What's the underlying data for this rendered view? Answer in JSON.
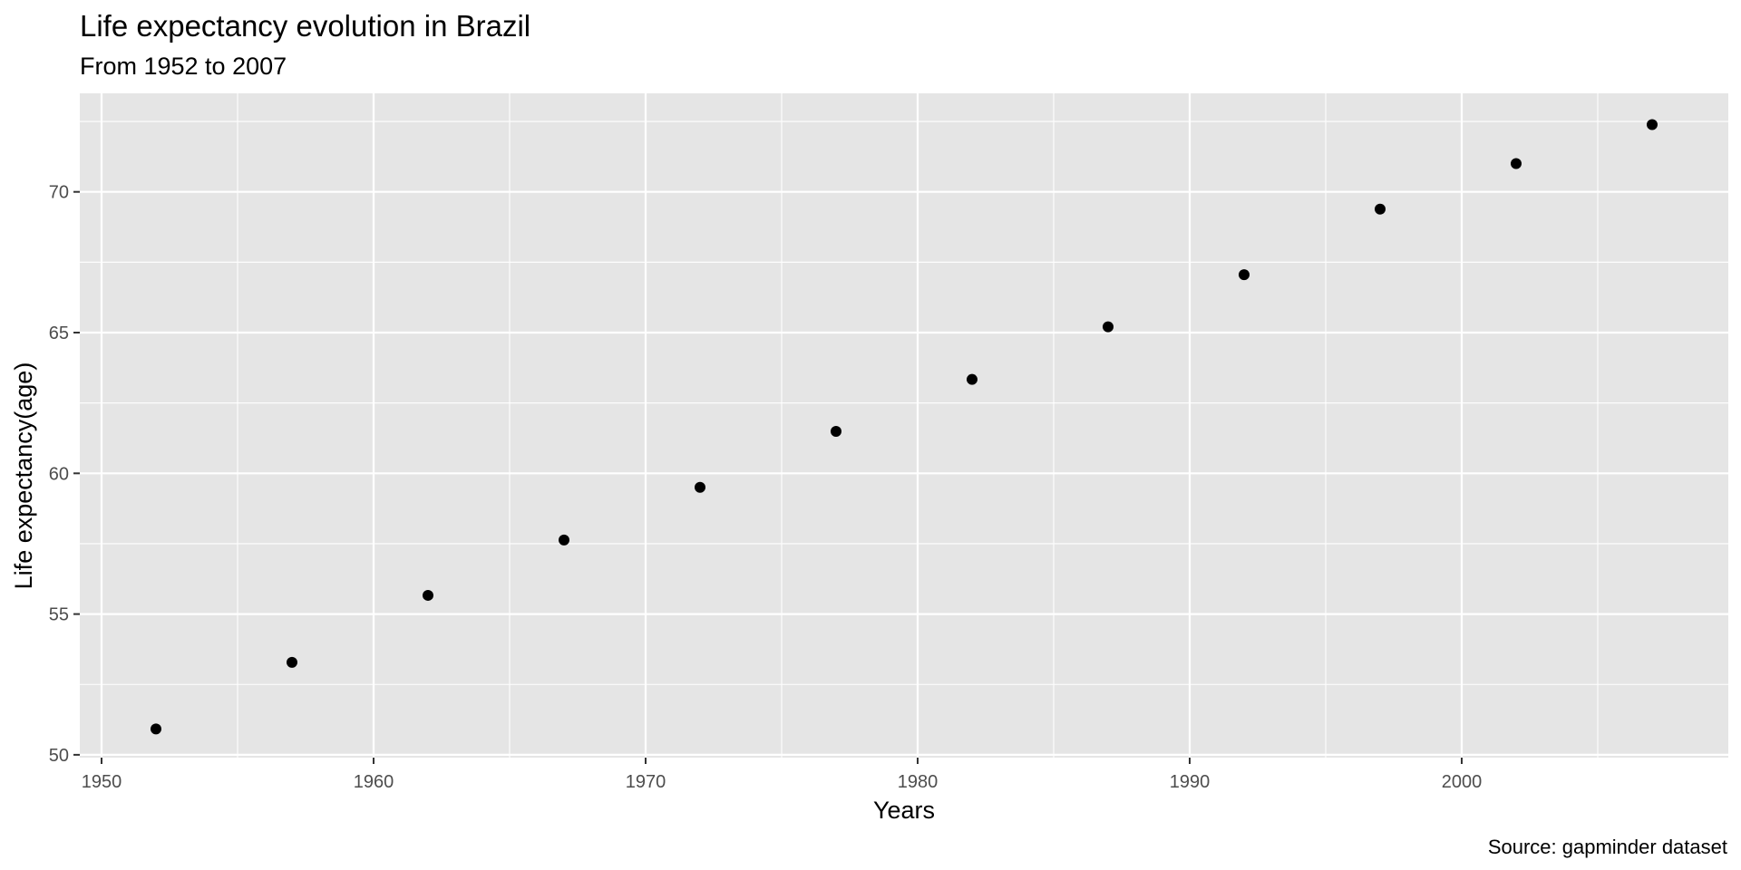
{
  "chart_data": {
    "type": "scatter",
    "title": "Life expectancy evolution in Brazil",
    "subtitle": "From 1952 to 2007",
    "xlabel": "Years",
    "ylabel": "Life expectancy(age)",
    "caption": "Source: gapminder dataset",
    "xlim": [
      1949.2,
      2009.8
    ],
    "ylim": [
      49.9,
      73.5
    ],
    "x_ticks": [
      1950,
      1960,
      1970,
      1980,
      1990,
      2000
    ],
    "x_minor_ticks": [
      1955,
      1965,
      1975,
      1985,
      1995,
      2005
    ],
    "y_ticks": [
      50,
      55,
      60,
      65,
      70
    ],
    "y_minor_ticks": [
      52.5,
      57.5,
      62.5,
      67.5,
      72.5
    ],
    "grid": true,
    "series": [
      {
        "x": [
          1952,
          1957,
          1962,
          1967,
          1972,
          1977,
          1982,
          1987,
          1992,
          1997,
          2002,
          2007
        ],
        "y": [
          50.917,
          53.285,
          55.665,
          57.632,
          59.504,
          61.489,
          63.336,
          65.205,
          67.057,
          69.388,
          71.006,
          72.39
        ]
      }
    ],
    "colors": {
      "panel_background": "#e5e5e5",
      "grid": "#ffffff",
      "points": "#000000",
      "tick_text": "#4d4d4d",
      "tick_marks": "#333333"
    }
  }
}
